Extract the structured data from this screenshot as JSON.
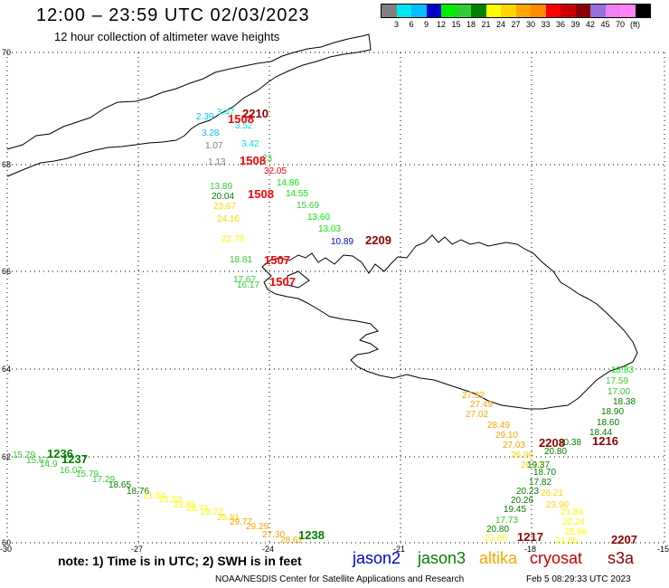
{
  "header": {
    "title": "12:00 – 23:59 UTC 02/03/2023",
    "subtitle": "12 hour collection of altimeter wave heights"
  },
  "legend": {
    "colors": [
      "#808080",
      "#00e5ee",
      "#00bfff",
      "#0000cd",
      "#00ee00",
      "#32cd32",
      "#008000",
      "#ffff00",
      "#ffd700",
      "#ffa500",
      "#ff8c00",
      "#ff0000",
      "#cd0000",
      "#8b0000",
      "#9370db",
      "#ee82ee",
      "#ff83fa",
      "#000000"
    ],
    "labels": [
      "3",
      "6",
      "9",
      "12",
      "15",
      "18",
      "21",
      "24",
      "27",
      "30",
      "33",
      "36",
      "39",
      "42",
      "45",
      "70",
      "(ft)"
    ]
  },
  "axes": {
    "lat_labels": [
      "70",
      "68",
      "66",
      "64",
      "62",
      "60"
    ],
    "lon_labels": [
      "-30",
      "-27",
      "-24",
      "-21",
      "-18",
      "-15"
    ]
  },
  "tracks": [
    {
      "time": "2210",
      "color": "#8b0000",
      "pts": [
        [
          "2.39",
          "#00bfff"
        ],
        [
          "3.47",
          "#00e5ee"
        ],
        [
          "3.52",
          "#00e5ee"
        ],
        [
          "3.28",
          "#00bfff"
        ],
        [
          "3.42",
          "#00e5ee"
        ],
        [
          "1.07",
          "#808080"
        ],
        [
          "1.13",
          "#808080"
        ]
      ]
    },
    {
      "time": "1508",
      "color": "#ff0000",
      "pts": [
        [
          "23",
          "#32cd32"
        ],
        [
          "32.05",
          "#ff0000"
        ],
        [
          "14.86",
          "#00ee00"
        ],
        [
          "14.55",
          "#00ee00"
        ],
        [
          "15.69",
          "#32cd32"
        ],
        [
          "13.60",
          "#00ee00"
        ],
        [
          "13.03",
          "#00ee00"
        ],
        [
          "13.89",
          "#32cd32"
        ],
        [
          "20.04",
          "#008000"
        ],
        [
          "23.67",
          "#ffd700"
        ],
        [
          "24.16",
          "#ffd700"
        ],
        [
          "22.79",
          "#ffff00"
        ],
        [
          "18.81",
          "#32cd32"
        ],
        [
          "17.67",
          "#32cd32"
        ],
        [
          "16.17",
          "#32cd32"
        ]
      ]
    },
    {
      "time": "2209",
      "color": "#8b0000",
      "pts": [
        [
          "10.89",
          "#0000cd"
        ]
      ]
    },
    {
      "time": "1216",
      "color": "#8b0000",
      "pts": [
        [
          "18.83",
          "#00ee00"
        ],
        [
          "17.59",
          "#32cd32"
        ],
        [
          "17.00",
          "#32cd32"
        ],
        [
          "18.38",
          "#008000"
        ],
        [
          "18.90",
          "#008000"
        ],
        [
          "18.60",
          "#008000"
        ],
        [
          "18.44",
          "#008000"
        ],
        [
          "20.38",
          "#008000"
        ]
      ]
    },
    {
      "time": "2208",
      "color": "#8b0000",
      "pts": [
        [
          "27.32",
          "#ffa500"
        ],
        [
          "27.49",
          "#ffa500"
        ],
        [
          "27.02",
          "#ffa500"
        ],
        [
          "28.49",
          "#ffa500"
        ],
        [
          "29.10",
          "#ffa500"
        ],
        [
          "27.03",
          "#ffa500"
        ],
        [
          "26.96",
          "#ffd700"
        ],
        [
          "26.17",
          "#ffd700"
        ],
        [
          "26.21",
          "#ffd700"
        ],
        [
          "23.90",
          "#ffd700"
        ],
        [
          "21.84",
          "#ffff00"
        ],
        [
          "22.24",
          "#ffff00"
        ],
        [
          "23.96",
          "#ffff00"
        ],
        [
          "21.06",
          "#ffff00"
        ]
      ]
    },
    {
      "time": "1217",
      "color": "#8b0000",
      "pts": [
        [
          "20.80",
          "#008000"
        ],
        [
          "19.37",
          "#008000"
        ],
        [
          "18.70",
          "#008000"
        ],
        [
          "17.82",
          "#008000"
        ],
        [
          "20.23",
          "#008000"
        ],
        [
          "20.26",
          "#008000"
        ],
        [
          "19.45",
          "#008000"
        ],
        [
          "17.73",
          "#32cd32"
        ],
        [
          "20.80",
          "#008000"
        ],
        [
          "21.86",
          "#ffff00"
        ]
      ]
    },
    {
      "time": "1236",
      "color": "#008000",
      "pts": [
        [
          "15.79",
          "#32cd32"
        ],
        [
          "15.67",
          "#32cd32"
        ],
        [
          "14.9",
          "#32cd32"
        ],
        [
          "16.07",
          "#32cd32"
        ],
        [
          "15.79",
          "#32cd32"
        ],
        [
          "17.29",
          "#32cd32"
        ],
        [
          "18.65",
          "#008000"
        ],
        [
          "18.76",
          "#008000"
        ],
        [
          "21.54",
          "#ffff00"
        ],
        [
          "21.53",
          "#ffff00"
        ],
        [
          "23.81",
          "#ffff00"
        ],
        [
          "23.71",
          "#ffff00"
        ],
        [
          "23.72",
          "#ffff00"
        ],
        [
          "25.81",
          "#ffd700"
        ],
        [
          "29.77",
          "#ffa500"
        ],
        [
          "29.29",
          "#ffa500"
        ],
        [
          "27.30",
          "#ffa500"
        ],
        [
          "28.62",
          "#ffa500"
        ]
      ]
    }
  ],
  "note": "note:  1) Time is in UTC;  2) SWH is in feet",
  "missions": [
    {
      "name": "jason2",
      "color": "#0000cd"
    },
    {
      "name": "jason3",
      "color": "#008000"
    },
    {
      "name": "altika",
      "color": "#ffa500"
    },
    {
      "name": "cryosat",
      "color": "#cd0000"
    },
    {
      "name": "s3a",
      "color": "#8b0000"
    }
  ],
  "credit": "NOAA/NESDIS Center for Satellite Applications and Research",
  "credit_date": "Feb  5 08:29:33 UTC 2023"
}
